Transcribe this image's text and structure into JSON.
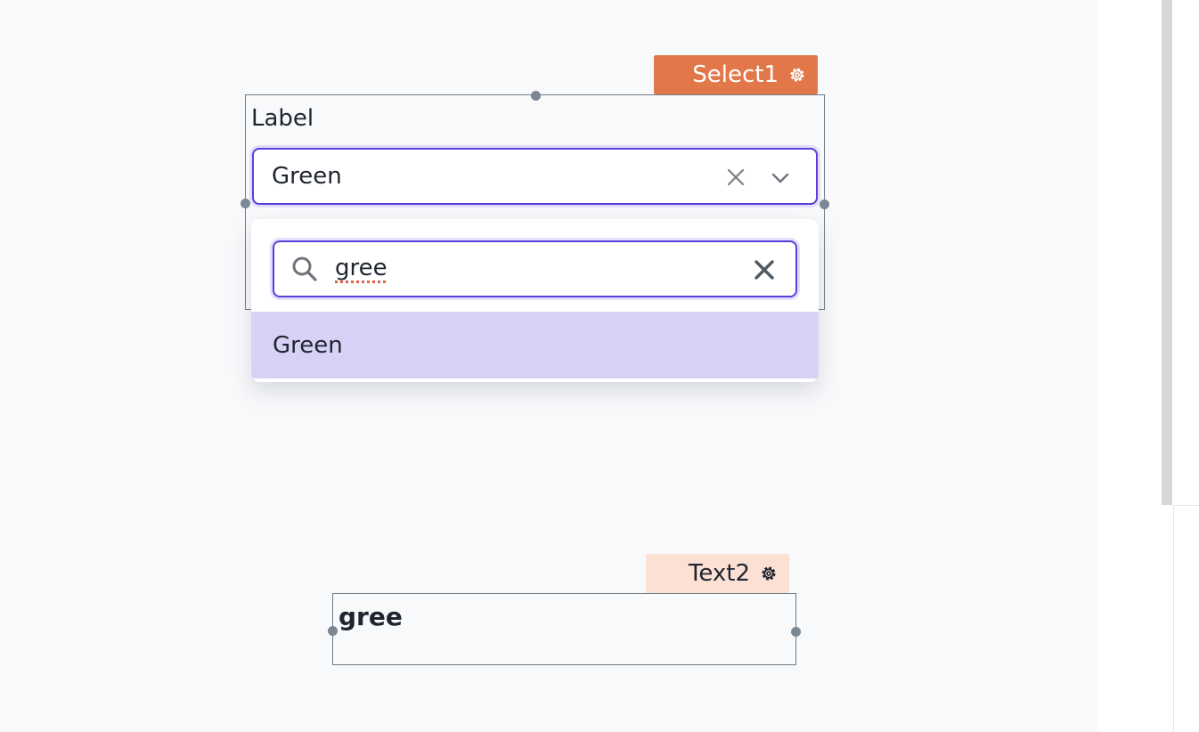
{
  "select_widget": {
    "tag_label": "Select1",
    "label": "Label",
    "value": "Green",
    "dropdown": {
      "search_value": "gree",
      "options": [
        "Green"
      ]
    }
  },
  "text_widget": {
    "tag_label": "Text2",
    "content": "gree"
  },
  "colors": {
    "accent": "#5b3fd6",
    "selected_tag": "#e2784a",
    "unselected_tag": "#fbe0d3",
    "option_highlight": "#d7d2f5"
  },
  "icons": {
    "tag_settings": "gear-icon",
    "clear": "close-icon",
    "expand": "chevron-down-icon",
    "search": "search-icon"
  }
}
